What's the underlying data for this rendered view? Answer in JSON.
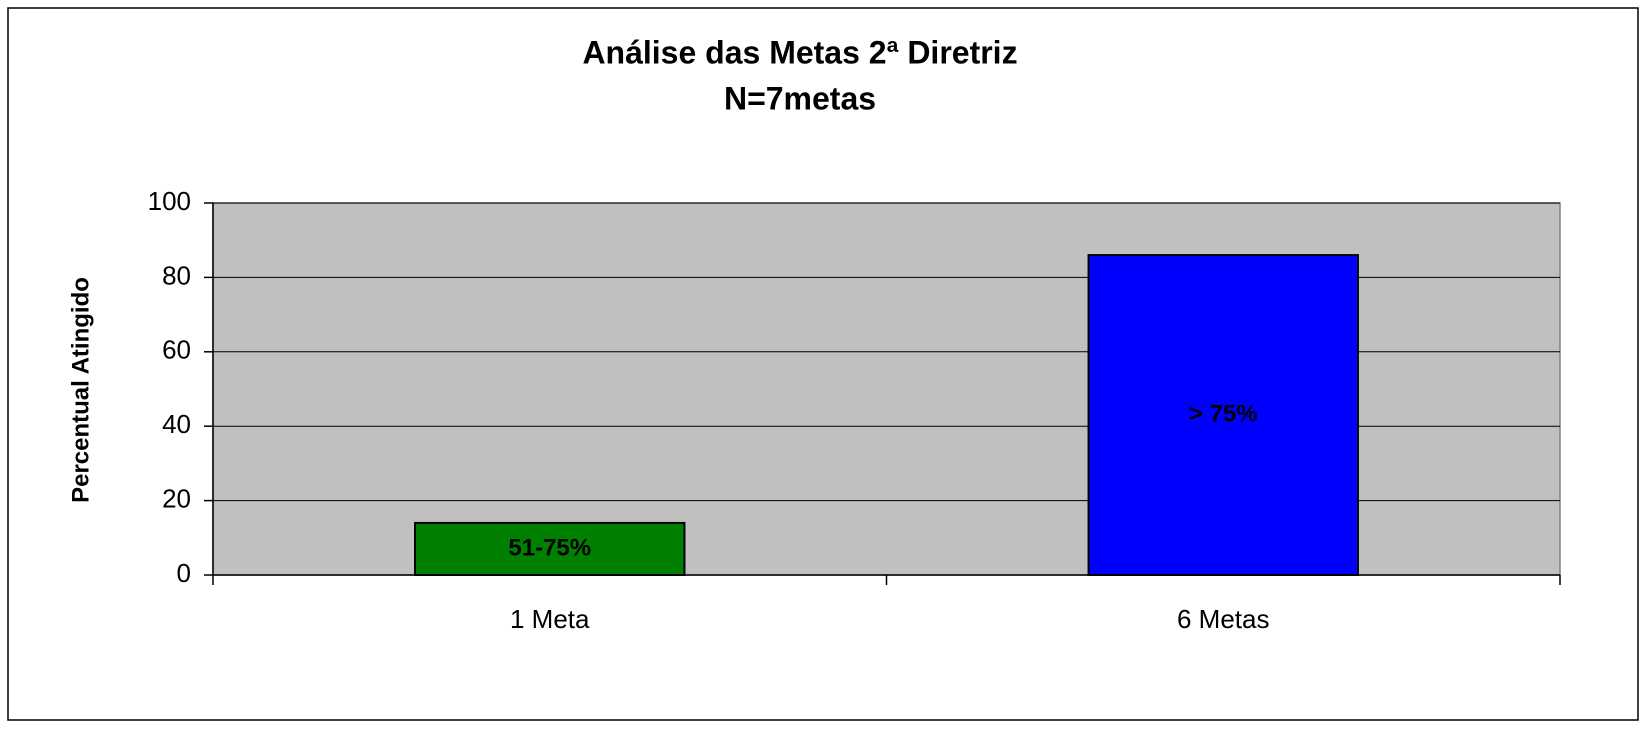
{
  "chart_data": {
    "type": "bar",
    "title": "Análise das Metas 2ª Diretriz",
    "subtitle": "N=7metas",
    "y_label": "Percentual Atingido",
    "categories": [
      "1 Meta",
      "6 Metas"
    ],
    "values": [
      14,
      86
    ],
    "bar_labels": [
      "51-75%",
      "> 75%"
    ],
    "colors": [
      "#008000",
      "#0000ff"
    ],
    "ylim": [
      0,
      100
    ],
    "yticks": [
      0,
      20,
      40,
      60,
      80,
      100
    ],
    "grid": true,
    "plot_background": "#c0c0c0"
  }
}
